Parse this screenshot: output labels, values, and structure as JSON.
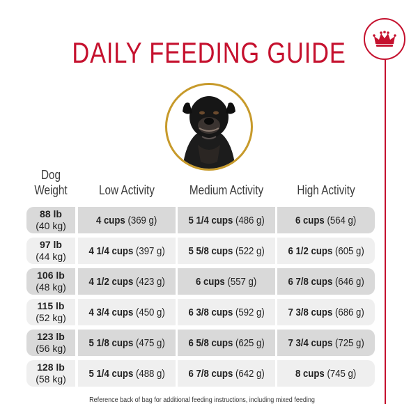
{
  "title": "DAILY FEEDING GUIDE",
  "brand": {
    "icon": "crown-icon",
    "color": "#c5112e"
  },
  "headers": {
    "weight_line1": "Dog",
    "weight_line2": "Weight",
    "low": "Low Activity",
    "medium": "Medium Activity",
    "high": "High Activity"
  },
  "rows": [
    {
      "lb": "88 lb",
      "kg": "(40 kg)",
      "low_cups": "4 cups",
      "low_g": "(369 g)",
      "med_cups": "5 1/4 cups",
      "med_g": "(486 g)",
      "high_cups": "6 cups",
      "high_g": "(564 g)"
    },
    {
      "lb": "97 lb",
      "kg": "(44 kg)",
      "low_cups": "4 1/4 cups",
      "low_g": "(397 g)",
      "med_cups": "5 5/8 cups",
      "med_g": "(522 g)",
      "high_cups": "6 1/2 cups",
      "high_g": "(605 g)"
    },
    {
      "lb": "106 lb",
      "kg": "(48 kg)",
      "low_cups": "4 1/2 cups",
      "low_g": "(423 g)",
      "med_cups": "6 cups",
      "med_g": "(557 g)",
      "high_cups": "6 7/8 cups",
      "high_g": "(646 g)"
    },
    {
      "lb": "115 lb",
      "kg": "(52 kg)",
      "low_cups": "4 3/4 cups",
      "low_g": "(450 g)",
      "med_cups": "6 3/8 cups",
      "med_g": "(592 g)",
      "high_cups": "7 3/8 cups",
      "high_g": "(686 g)"
    },
    {
      "lb": "123 lb",
      "kg": "(56 kg)",
      "low_cups": "5 1/8 cups",
      "low_g": "(475 g)",
      "med_cups": "6 5/8 cups",
      "med_g": "(625 g)",
      "high_cups": "7 3/4 cups",
      "high_g": "(725 g)"
    },
    {
      "lb": "128 lb",
      "kg": "(58 kg)",
      "low_cups": "5 1/4 cups",
      "low_g": "(488 g)",
      "med_cups": "6 7/8 cups",
      "med_g": "(642 g)",
      "high_cups": "8 cups",
      "high_g": "(745 g)"
    }
  ],
  "footnote": "Reference back of bag for additional feeding instructions, including mixed feeding",
  "colors": {
    "title": "#c5112e",
    "ring": "#c79a2b",
    "row_dark": "#d9d9d9",
    "row_light": "#efefef"
  }
}
